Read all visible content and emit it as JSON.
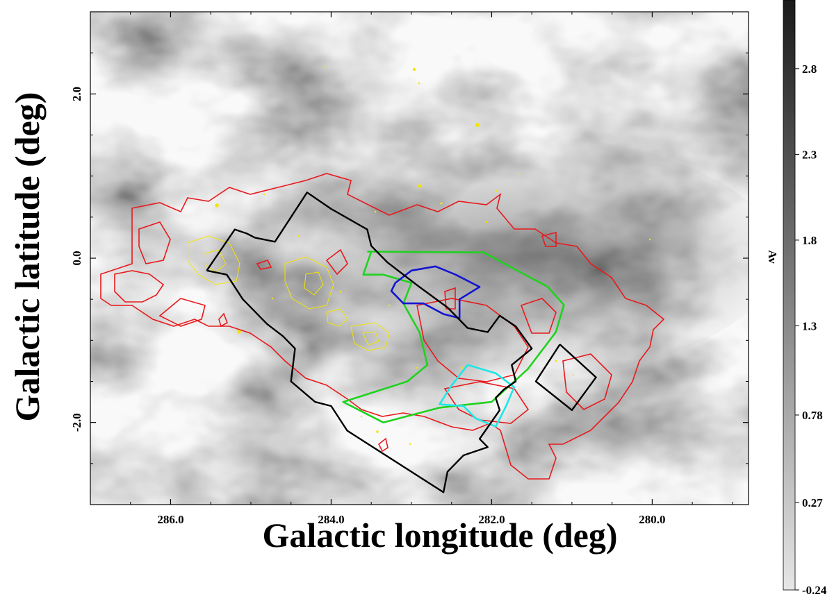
{
  "chart_data": {
    "type": "heatmap",
    "xlabel": "Galactic longitude (deg)",
    "ylabel": "Galactic latitude (deg)",
    "xlim": [
      287.0,
      278.8
    ],
    "ylim": [
      -3.0,
      3.0
    ],
    "x_ticks": [
      286.0,
      284.0,
      282.0,
      280.0
    ],
    "x_tick_labels": [
      "286.0",
      "284.0",
      "282.0",
      "280.0"
    ],
    "y_ticks": [
      2.0,
      0.0,
      -2.0
    ],
    "y_tick_labels": [
      "2.0",
      "0.0",
      "-2.0"
    ],
    "grid": false,
    "colorbar": {
      "label": "Av",
      "range": [
        -0.24,
        3.2
      ],
      "ticks": [
        2.8,
        2.3,
        1.8,
        1.3,
        0.78,
        0.27,
        -0.24
      ],
      "tick_labels": [
        "2.8",
        "2.3",
        "1.8",
        "1.3",
        "0.78",
        "0.27",
        "-0.24"
      ],
      "cmap": "grayscale, white = low, black = high"
    },
    "colors": {
      "red_contours": "#e8191c",
      "yellow_contours": "#f2e600",
      "black_footprint": "#000000",
      "green_region": "#1fd21f",
      "blue_region": "#1414d2",
      "cyan_region": "#1fe6e6"
    },
    "outlines": [
      {
        "color": "green",
        "points": [
          [
            283.55,
            0.08
          ],
          [
            282.1,
            0.07
          ],
          [
            281.3,
            -0.35
          ],
          [
            281.1,
            -0.57
          ],
          [
            281.2,
            -0.9
          ],
          [
            281.55,
            -1.35
          ],
          [
            282.0,
            -1.75
          ],
          [
            282.65,
            -1.82
          ],
          [
            283.35,
            -2.0
          ],
          [
            283.85,
            -1.75
          ],
          [
            283.05,
            -1.5
          ],
          [
            282.8,
            -1.3
          ],
          [
            282.9,
            -0.9
          ],
          [
            283.1,
            -0.55
          ],
          [
            283.0,
            -0.3
          ],
          [
            283.35,
            -0.2
          ],
          [
            283.6,
            -0.2
          ],
          [
            283.5,
            0.08
          ]
        ]
      },
      {
        "color": "blue",
        "points": [
          [
            283.2,
            -0.3
          ],
          [
            283.0,
            -0.15
          ],
          [
            282.7,
            -0.1
          ],
          [
            282.45,
            -0.2
          ],
          [
            282.15,
            -0.35
          ],
          [
            282.4,
            -0.5
          ],
          [
            282.4,
            -0.73
          ],
          [
            282.6,
            -0.68
          ],
          [
            282.85,
            -0.55
          ],
          [
            283.1,
            -0.55
          ],
          [
            283.25,
            -0.4
          ],
          [
            283.2,
            -0.3
          ]
        ]
      },
      {
        "color": "cyan",
        "points": [
          [
            282.3,
            -1.3
          ],
          [
            281.95,
            -1.4
          ],
          [
            281.72,
            -1.57
          ],
          [
            281.82,
            -1.8
          ],
          [
            281.95,
            -2.05
          ],
          [
            282.2,
            -1.95
          ],
          [
            282.35,
            -1.8
          ],
          [
            282.65,
            -1.78
          ],
          [
            282.5,
            -1.55
          ],
          [
            282.3,
            -1.3
          ]
        ]
      },
      {
        "color": "black",
        "points": [
          [
            285.55,
            -0.15
          ],
          [
            285.2,
            0.35
          ],
          [
            285.05,
            0.3
          ],
          [
            284.95,
            0.25
          ],
          [
            284.7,
            0.2
          ],
          [
            284.5,
            0.5
          ],
          [
            284.3,
            0.8
          ],
          [
            284.0,
            0.6
          ],
          [
            283.55,
            0.35
          ],
          [
            283.5,
            0.15
          ],
          [
            283.3,
            -0.05
          ],
          [
            282.9,
            -0.35
          ],
          [
            282.55,
            -0.6
          ],
          [
            282.3,
            -0.85
          ],
          [
            282.05,
            -0.9
          ],
          [
            281.9,
            -0.7
          ],
          [
            281.7,
            -0.83
          ],
          [
            281.5,
            -1.1
          ],
          [
            281.75,
            -1.3
          ],
          [
            281.7,
            -1.5
          ],
          [
            281.85,
            -1.6
          ],
          [
            281.95,
            -1.7
          ],
          [
            281.9,
            -1.85
          ],
          [
            282.15,
            -2.2
          ],
          [
            282.05,
            -2.3
          ],
          [
            282.2,
            -2.35
          ],
          [
            282.35,
            -2.4
          ],
          [
            282.55,
            -2.6
          ],
          [
            282.6,
            -2.85
          ],
          [
            283.8,
            -2.1
          ],
          [
            284.0,
            -1.8
          ],
          [
            284.2,
            -1.75
          ],
          [
            284.5,
            -1.5
          ],
          [
            284.45,
            -1.1
          ],
          [
            284.6,
            -0.95
          ],
          [
            284.8,
            -0.8
          ],
          [
            285.1,
            -0.5
          ],
          [
            285.3,
            -0.2
          ],
          [
            285.55,
            -0.15
          ]
        ]
      },
      {
        "color": "black",
        "points": [
          [
            281.15,
            -1.05
          ],
          [
            280.7,
            -1.45
          ],
          [
            281.0,
            -1.85
          ],
          [
            281.45,
            -1.5
          ],
          [
            281.15,
            -1.05
          ]
        ]
      }
    ]
  }
}
